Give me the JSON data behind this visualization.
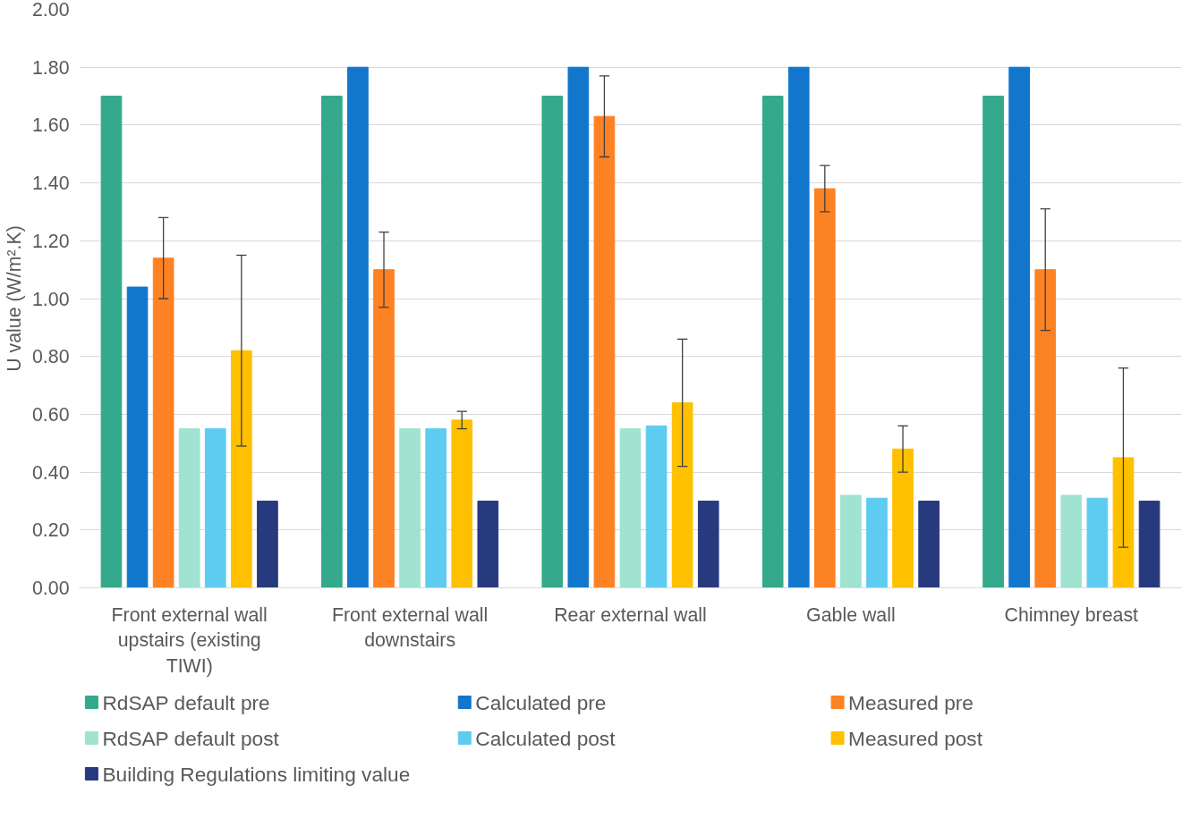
{
  "chart_data": {
    "type": "bar",
    "ylabel": "U value (W/m².K)",
    "categories": [
      "Front external wall upstairs (existing TIWI)",
      "Front external wall downstairs",
      "Rear external wall",
      "Gable wall",
      "Chimney breast"
    ],
    "series": [
      {
        "name": "RdSAP default pre",
        "color": "#34a98b",
        "values": [
          1.7,
          1.7,
          1.7,
          1.7,
          1.7
        ]
      },
      {
        "name": "Calculated pre",
        "color": "#1276cc",
        "values": [
          1.04,
          1.8,
          1.8,
          1.8,
          1.8
        ]
      },
      {
        "name": "Measured pre",
        "color": "#fd8224",
        "values": [
          1.14,
          1.1,
          1.63,
          1.38,
          1.1
        ],
        "errors": [
          [
            1.0,
            1.28
          ],
          [
            0.97,
            1.23
          ],
          [
            1.49,
            1.77
          ],
          [
            1.3,
            1.46
          ],
          [
            0.89,
            1.31
          ]
        ]
      },
      {
        "name": "RdSAP default post",
        "color": "#a0e3d0",
        "values": [
          0.55,
          0.55,
          0.55,
          0.32,
          0.32
        ]
      },
      {
        "name": "Calculated post",
        "color": "#5ecbf1",
        "values": [
          0.55,
          0.55,
          0.56,
          0.31,
          0.31
        ]
      },
      {
        "name": "Measured post",
        "color": "#ffc000",
        "values": [
          0.82,
          0.58,
          0.64,
          0.48,
          0.45
        ],
        "errors": [
          [
            0.49,
            1.15
          ],
          [
            0.55,
            0.61
          ],
          [
            0.42,
            0.86
          ],
          [
            0.4,
            0.56
          ],
          [
            0.14,
            0.76
          ]
        ]
      },
      {
        "name": "Building Regulations limiting value",
        "color": "#283a7e",
        "values": [
          0.3,
          0.3,
          0.3,
          0.3,
          0.3
        ]
      }
    ],
    "ylim": [
      0,
      2.0
    ],
    "yticks": [
      {
        "value": 0,
        "label": "0.00"
      },
      {
        "value": 0.2,
        "label": "0.20"
      },
      {
        "value": 0.4,
        "label": "0.40"
      },
      {
        "value": 0.6,
        "label": "0.60"
      },
      {
        "value": 0.8,
        "label": "0.80"
      },
      {
        "value": 1.0,
        "label": "1.00"
      },
      {
        "value": 1.2,
        "label": "1.20"
      },
      {
        "value": 1.4,
        "label": "1.40"
      },
      {
        "value": 1.6,
        "label": "1.60"
      },
      {
        "value": 1.8,
        "label": "1.80"
      },
      {
        "value": 2.0,
        "label": "2.00"
      }
    ],
    "grid": "y",
    "legend": "bottom"
  }
}
